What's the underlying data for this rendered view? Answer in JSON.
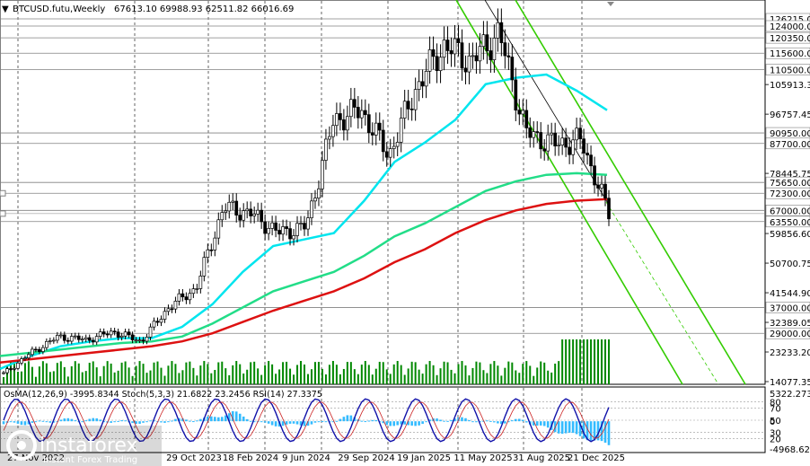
{
  "header": {
    "symbol": "BTCUSD.futu,Weekly",
    "ohlc": "67613.10 69988.93 62511.82 66016.69"
  },
  "chart_data": [
    {
      "type": "candlestick",
      "symbol": "BTCUSD.futu",
      "timeframe": "Weekly",
      "ohlc_current": {
        "open": 67613.1,
        "high": 69988.93,
        "low": 62511.82,
        "close": 66016.69
      },
      "y_axis_labels": [
        "126215.00",
        "124000.00",
        "120350.00",
        "115600.00",
        "110500.00",
        "105913.30",
        "96757.45",
        "90950.00",
        "87700.00",
        "78445.75",
        "75650.00",
        "72300.00",
        "67000.00",
        "63550.00",
        "59856.60",
        "50700.75",
        "41544.90",
        "37000.00",
        "32389.05",
        "29000.00",
        "23233.20",
        "14077.35"
      ],
      "highlighted_levels": [
        "126215.00",
        "124000.00",
        "120350.00",
        "115600.00",
        "110500.00",
        "90950.00",
        "87700.00",
        "75650.00",
        "72300.00",
        "67000.00",
        "63550.00",
        "37000.00",
        "29000.00"
      ],
      "x_axis_labels": [
        "27 Nov 2022",
        "29 Oct 2023",
        "18 Feb 2024",
        "9 Jun 2024",
        "29 Sep 2024",
        "19 Jan 2025",
        "11 May 2025",
        "31 Aug 2025",
        "21 Dec 2025"
      ],
      "series": [
        {
          "name": "close",
          "kind": "candles",
          "x": [
            "2022-11",
            "2023-01",
            "2023-03",
            "2023-05",
            "2023-07",
            "2023-09",
            "2023-11",
            "2024-01",
            "2024-03",
            "2024-05",
            "2024-07",
            "2024-09",
            "2024-11",
            "2025-01",
            "2025-03",
            "2025-05",
            "2025-07",
            "2025-09",
            "2025-10",
            "2025-11",
            "2025-12",
            "2026-01",
            "2026-02"
          ],
          "values": [
            16500,
            23000,
            28000,
            27000,
            29500,
            26500,
            37000,
            43000,
            68000,
            66000,
            60000,
            62000,
            95000,
            98000,
            84000,
            105000,
            118000,
            113000,
            122000,
            91000,
            87500,
            88500,
            66000
          ]
        },
        {
          "kind": "ma-cyan",
          "values": [
            18000,
            22000,
            25000,
            26500,
            27500,
            27500,
            31000,
            38000,
            48000,
            56000,
            58000,
            60000,
            70000,
            82000,
            88000,
            95000,
            106000,
            108000,
            109000,
            104000,
            98000
          ]
        },
        {
          "kind": "ma-green",
          "values": [
            22000,
            23000,
            24000,
            25000,
            26000,
            26500,
            28000,
            32000,
            37000,
            42000,
            45000,
            48000,
            53000,
            59000,
            63000,
            68000,
            73000,
            76000,
            78000,
            78500,
            78000
          ]
        },
        {
          "kind": "ma-red",
          "values": [
            20000,
            21000,
            22000,
            23000,
            24000,
            25000,
            26500,
            29000,
            32500,
            36000,
            39000,
            42000,
            46000,
            51000,
            55000,
            60000,
            64000,
            67000,
            69000,
            70000,
            70500
          ]
        }
      ],
      "xlabel": "",
      "ylabel": "",
      "ylim": [
        14077.35,
        126215.0
      ],
      "grid": true
    },
    {
      "type": "indicator",
      "header": "OsMA(12,26,9) -3995.8344  Stoch(5,3,3) 21.6822 23.2456  RSI(14) 27.3375",
      "y_axis_labels": [
        "5322.2737",
        "80",
        "70",
        "50",
        "0",
        "30",
        "20",
        "-4968.6279"
      ],
      "values": [
        -500,
        -300,
        200,
        300,
        -100,
        -200,
        200,
        400,
        1500,
        -500,
        -700,
        -300,
        800,
        -200,
        -900,
        300,
        400,
        -300,
        200,
        -1500,
        -2500,
        -3995.8344
      ]
    }
  ],
  "watermark": {
    "brand": "instaforex",
    "tagline": "Instant Forex Trading"
  }
}
